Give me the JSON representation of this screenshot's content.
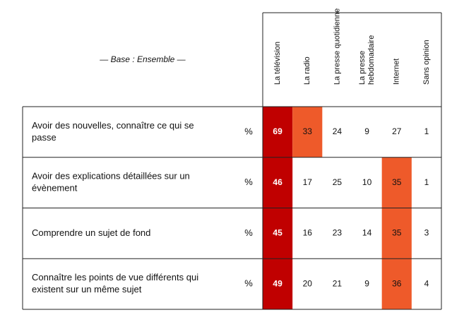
{
  "table": {
    "base": "— Base : Ensemble —",
    "columns": [
      [
        "La télévision"
      ],
      [
        "La radio"
      ],
      [
        "La presse quotidienne"
      ],
      [
        "La presse",
        "hebdomadaire"
      ],
      [
        "Internet"
      ],
      [
        "Sans opinion"
      ]
    ],
    "rows": [
      {
        "label": [
          "Avoir des nouvelles, connaître ce qui se",
          "passe"
        ],
        "unit": "%",
        "values": [
          69,
          33,
          24,
          9,
          27,
          1
        ],
        "fills": [
          "#c00000",
          "#ee5a2a",
          null,
          null,
          null,
          null
        ]
      },
      {
        "label": [
          "Avoir des explications détaillées sur un",
          "évènement"
        ],
        "unit": "%",
        "values": [
          46,
          17,
          25,
          10,
          35,
          1
        ],
        "fills": [
          "#c00000",
          null,
          null,
          null,
          "#ee5a2a",
          null
        ]
      },
      {
        "label": [
          "Comprendre un sujet de fond"
        ],
        "unit": "%",
        "values": [
          45,
          16,
          23,
          14,
          35,
          3
        ],
        "fills": [
          "#c00000",
          null,
          null,
          null,
          "#ee5a2a",
          null
        ]
      },
      {
        "label": [
          "Connaître les points de vue différents qui",
          "existent sur un même sujet"
        ],
        "unit": "%",
        "values": [
          49,
          20,
          21,
          9,
          36,
          4
        ],
        "fills": [
          "#c00000",
          null,
          null,
          null,
          "#ee5a2a",
          null
        ]
      }
    ]
  }
}
